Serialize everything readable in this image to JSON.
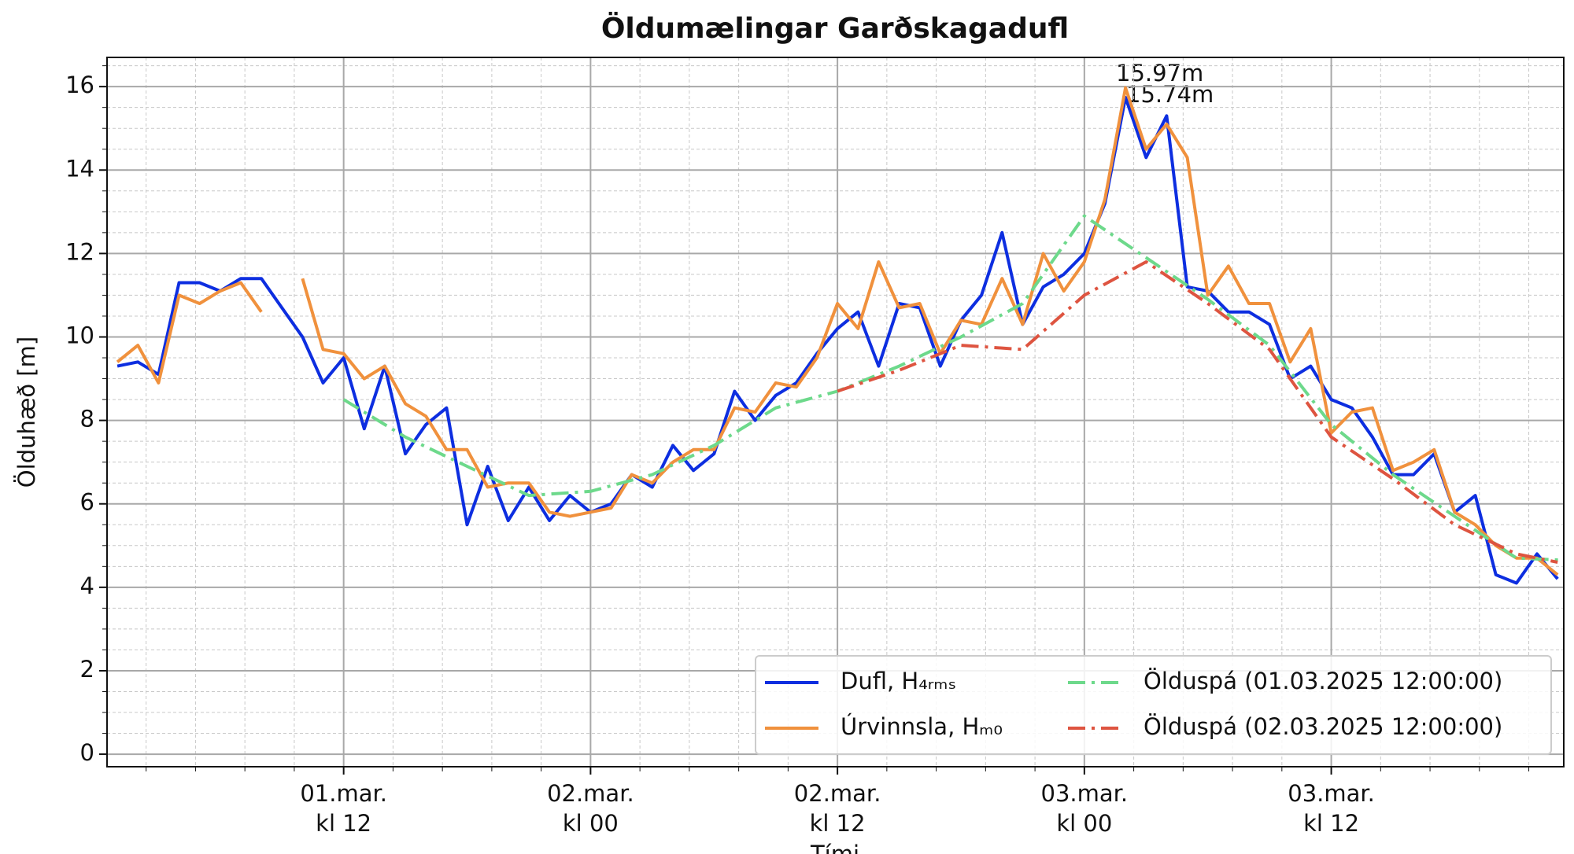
{
  "chart_data": {
    "type": "line",
    "title": "Öldumælingar Garðskagadufl",
    "xlabel": "Tími",
    "ylabel": "Ölduhæð [m]",
    "xlim": [
      0.5,
      71.3
    ],
    "ylim": [
      -0.3,
      16.7
    ],
    "xticks": [
      {
        "value": 12,
        "label": "01.mar.\nkl 12"
      },
      {
        "value": 24,
        "label": "02.mar.\nkl 00"
      },
      {
        "value": 36,
        "label": "02.mar.\nkl 12"
      },
      {
        "value": 48,
        "label": "03.mar.\nkl 00"
      },
      {
        "value": 60,
        "label": "03.mar.\nkl 12"
      }
    ],
    "xminorticks": [
      2.4,
      4.8,
      7.2,
      9.6,
      14.4,
      16.8,
      19.2,
      21.6,
      26.4,
      28.8,
      31.2,
      33.6,
      38.4,
      40.8,
      43.2,
      45.6,
      50.4,
      52.8,
      55.2,
      57.6,
      62.4,
      64.8,
      67.2,
      69.6
    ],
    "yticks": [
      0,
      2,
      4,
      6,
      8,
      10,
      12,
      14,
      16
    ],
    "yminorticks": [
      0.5,
      1,
      1.5,
      2.5,
      3,
      3.5,
      4.5,
      5,
      5.5,
      6.5,
      7,
      7.5,
      8.5,
      9,
      9.5,
      10.5,
      11,
      11.5,
      12.5,
      13,
      13.5,
      14.5,
      15,
      15.5,
      16.5
    ],
    "grid": true,
    "legend": "lower right",
    "annotations": [
      "15.97m",
      "15.74m"
    ],
    "series": [
      {
        "name": "Dufl, H₄ᵣₘₛ",
        "color": "#0d2ee0",
        "style": "solid",
        "x": [
          1,
          2,
          3,
          4,
          5,
          6,
          7,
          8,
          9,
          10,
          11,
          12,
          13,
          14,
          15,
          16,
          17,
          18,
          19,
          20,
          21,
          22,
          23,
          24,
          25,
          26,
          27,
          28,
          29,
          30,
          31,
          32,
          33,
          34,
          35,
          36,
          37,
          38,
          39,
          40,
          41,
          42,
          43,
          44,
          45,
          46,
          47,
          48,
          49,
          50,
          51,
          52,
          53,
          54,
          55,
          56,
          57,
          58,
          59,
          60,
          61,
          62,
          63,
          64,
          65,
          66,
          67,
          68,
          69,
          70,
          71
        ],
        "values": [
          9.3,
          9.4,
          9.1,
          11.3,
          11.3,
          11.1,
          11.4,
          11.4,
          10.7,
          10.0,
          8.9,
          9.5,
          7.8,
          9.3,
          7.2,
          7.9,
          8.3,
          5.5,
          6.9,
          5.6,
          6.4,
          5.6,
          6.2,
          5.8,
          6.0,
          6.7,
          6.4,
          7.4,
          6.8,
          7.2,
          8.7,
          8.0,
          8.6,
          8.9,
          9.6,
          10.2,
          10.6,
          9.3,
          10.8,
          10.7,
          9.3,
          10.4,
          11.0,
          12.5,
          10.3,
          11.2,
          11.5,
          12.0,
          13.2,
          15.74,
          14.3,
          15.3,
          11.2,
          11.1,
          10.6,
          10.6,
          10.3,
          9.0,
          9.3,
          8.5,
          8.3,
          7.6,
          6.7,
          6.7,
          7.2,
          5.8,
          6.2,
          4.3,
          4.1,
          4.8,
          4.2
        ]
      },
      {
        "name": "Úrvinnsla, Hₘ₀",
        "color": "#f0913d",
        "style": "solid",
        "x": [
          1,
          2,
          3,
          4,
          5,
          6,
          7,
          8,
          9,
          10,
          11,
          12,
          13,
          14,
          15,
          16,
          17,
          18,
          19,
          20,
          21,
          22,
          23,
          24,
          25,
          26,
          27,
          28,
          29,
          30,
          31,
          32,
          33,
          34,
          35,
          36,
          37,
          38,
          39,
          40,
          41,
          42,
          43,
          44,
          45,
          46,
          47,
          48,
          49,
          50,
          51,
          52,
          53,
          54,
          55,
          56,
          57,
          58,
          59,
          60,
          61,
          62,
          63,
          64,
          65,
          66,
          67,
          68,
          69,
          70,
          71
        ],
        "values": [
          9.4,
          9.8,
          8.9,
          11.0,
          10.8,
          11.1,
          11.3,
          10.6,
          null,
          11.4,
          9.7,
          9.6,
          9.0,
          9.3,
          8.4,
          8.1,
          7.3,
          7.3,
          6.4,
          6.5,
          6.5,
          5.8,
          5.7,
          5.8,
          5.9,
          6.7,
          6.5,
          7.0,
          7.3,
          7.3,
          8.3,
          8.2,
          8.9,
          8.8,
          9.5,
          10.8,
          10.2,
          11.8,
          10.7,
          10.8,
          9.6,
          10.4,
          10.3,
          11.4,
          10.3,
          12.0,
          11.1,
          11.8,
          13.3,
          15.97,
          14.5,
          15.1,
          14.3,
          11.0,
          11.7,
          10.8,
          10.8,
          9.4,
          10.2,
          7.7,
          8.2,
          8.3,
          6.8,
          7.0,
          7.3,
          5.8,
          5.5,
          5.0,
          4.7,
          4.7,
          4.3
        ]
      },
      {
        "name": "Ölduspá (01.03.2025 12:00:00)",
        "color": "#6dd98b",
        "style": "dashdot",
        "x": [
          12,
          15,
          18,
          21,
          24,
          27,
          30,
          33,
          36,
          39,
          42,
          45,
          48,
          51,
          54,
          57,
          60,
          63,
          66,
          69,
          71.3
        ],
        "values": [
          8.5,
          7.6,
          6.9,
          6.2,
          6.3,
          6.7,
          7.4,
          8.3,
          8.7,
          9.3,
          10.0,
          10.8,
          12.9,
          11.9,
          10.9,
          9.8,
          7.9,
          6.7,
          5.7,
          4.7,
          4.65
        ]
      },
      {
        "name": "Ölduspá (02.03.2025 12:00:00)",
        "color": "#de5440",
        "style": "dashdot",
        "x": [
          36,
          39,
          42,
          45,
          48,
          51,
          54,
          57,
          60,
          63,
          66,
          69,
          71
        ],
        "values": [
          8.7,
          9.2,
          9.8,
          9.7,
          11.0,
          11.8,
          10.8,
          9.7,
          7.6,
          6.6,
          5.5,
          4.8,
          4.6
        ]
      }
    ]
  }
}
